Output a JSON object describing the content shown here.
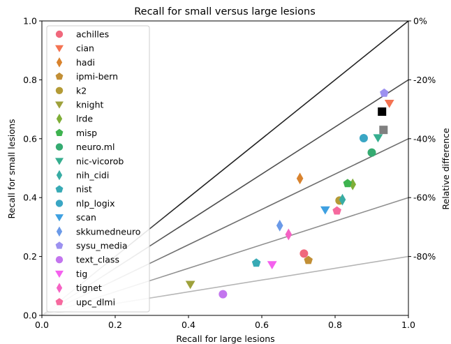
{
  "chart_data": {
    "type": "scatter",
    "title": "Recall for small versus large lesions",
    "xlabel": "Recall for large lesions",
    "ylabel": "Recall for small lesions",
    "y2label": "Relative difference",
    "xlim": [
      0,
      1
    ],
    "ylim": [
      0,
      1
    ],
    "xticks": [
      "0.0",
      "0.2",
      "0.4",
      "0.6",
      "0.8",
      "1.0"
    ],
    "yticks": [
      "0.0",
      "0.2",
      "0.4",
      "0.6",
      "0.8",
      "1.0"
    ],
    "y2ticks": [
      {
        "value": 1.0,
        "label": "0%"
      },
      {
        "value": 0.8,
        "label": "-20%"
      },
      {
        "value": 0.6,
        "label": "-40%"
      },
      {
        "value": 0.4,
        "label": "-60%"
      },
      {
        "value": 0.2,
        "label": "-80%"
      }
    ],
    "reference_lines": [
      {
        "slope": 1.0,
        "color": "#222222"
      },
      {
        "slope": 0.8,
        "color": "#4d4d4d"
      },
      {
        "slope": 0.6,
        "color": "#6e6e6e"
      },
      {
        "slope": 0.4,
        "color": "#8f8f8f"
      },
      {
        "slope": 0.2,
        "color": "#b5b5b5"
      }
    ],
    "legend_position": "upper-left",
    "series": [
      {
        "name": "achilles",
        "marker": "circle",
        "color": "#f0687c",
        "points": [
          [
            0.715,
            0.21
          ]
        ]
      },
      {
        "name": "cian",
        "marker": "triangle-down",
        "color": "#f47352",
        "points": [
          [
            0.948,
            0.72
          ]
        ]
      },
      {
        "name": "hadi",
        "marker": "diamond",
        "color": "#d9832e",
        "points": [
          [
            0.704,
            0.465
          ]
        ]
      },
      {
        "name": "ipmi-bern",
        "marker": "pentagon",
        "color": "#c28f36",
        "points": [
          [
            0.727,
            0.187
          ]
        ]
      },
      {
        "name": "k2",
        "marker": "circle",
        "color": "#b49b36",
        "points": [
          [
            0.812,
            0.39
          ]
        ]
      },
      {
        "name": "knight",
        "marker": "triangle-down",
        "color": "#9ea13b",
        "points": [
          [
            0.405,
            0.105
          ]
        ]
      },
      {
        "name": "lrde",
        "marker": "diamond",
        "color": "#7fae38",
        "points": [
          [
            0.848,
            0.445
          ]
        ]
      },
      {
        "name": "misp",
        "marker": "pentagon",
        "color": "#3eb34f",
        "points": [
          [
            0.834,
            0.448
          ]
        ]
      },
      {
        "name": "neuro.ml",
        "marker": "circle",
        "color": "#35ab71",
        "points": [
          [
            0.9,
            0.553
          ]
        ]
      },
      {
        "name": "nic-vicorob",
        "marker": "triangle-down",
        "color": "#36ae8f",
        "points": [
          [
            0.917,
            0.603
          ]
        ]
      },
      {
        "name": "nih_cidi",
        "marker": "diamond",
        "color": "#38aca4",
        "points": [
          [
            0.82,
            0.393
          ]
        ]
      },
      {
        "name": "nist",
        "marker": "pentagon",
        "color": "#38aab5",
        "points": [
          [
            0.585,
            0.178
          ]
        ]
      },
      {
        "name": "nlp_logix",
        "marker": "circle",
        "color": "#3aa6c4",
        "points": [
          [
            0.878,
            0.602
          ]
        ]
      },
      {
        "name": "scan",
        "marker": "triangle-down",
        "color": "#3ea0e1",
        "points": [
          [
            0.773,
            0.358
          ]
        ]
      },
      {
        "name": "skkumedneuro",
        "marker": "diamond",
        "color": "#6b9ae8",
        "points": [
          [
            0.649,
            0.305
          ]
        ]
      },
      {
        "name": "sysu_media",
        "marker": "pentagon",
        "color": "#9c91f0",
        "points": [
          [
            0.934,
            0.755
          ]
        ]
      },
      {
        "name": "text_class",
        "marker": "circle",
        "color": "#c375ee",
        "points": [
          [
            0.494,
            0.072
          ]
        ]
      },
      {
        "name": "tig",
        "marker": "triangle-down",
        "color": "#f461ee",
        "points": [
          [
            0.628,
            0.172
          ]
        ]
      },
      {
        "name": "tignet",
        "marker": "diamond",
        "color": "#f563c4",
        "points": [
          [
            0.673,
            0.275
          ]
        ]
      },
      {
        "name": "upc_dlmi",
        "marker": "pentagon",
        "color": "#f6699e",
        "points": [
          [
            0.805,
            0.355
          ]
        ]
      }
    ],
    "extra_markers": [
      {
        "marker": "square",
        "color": "#000000",
        "x": 0.928,
        "y": 0.692
      },
      {
        "marker": "square",
        "color": "#808080",
        "x": 0.932,
        "y": 0.63
      }
    ]
  }
}
